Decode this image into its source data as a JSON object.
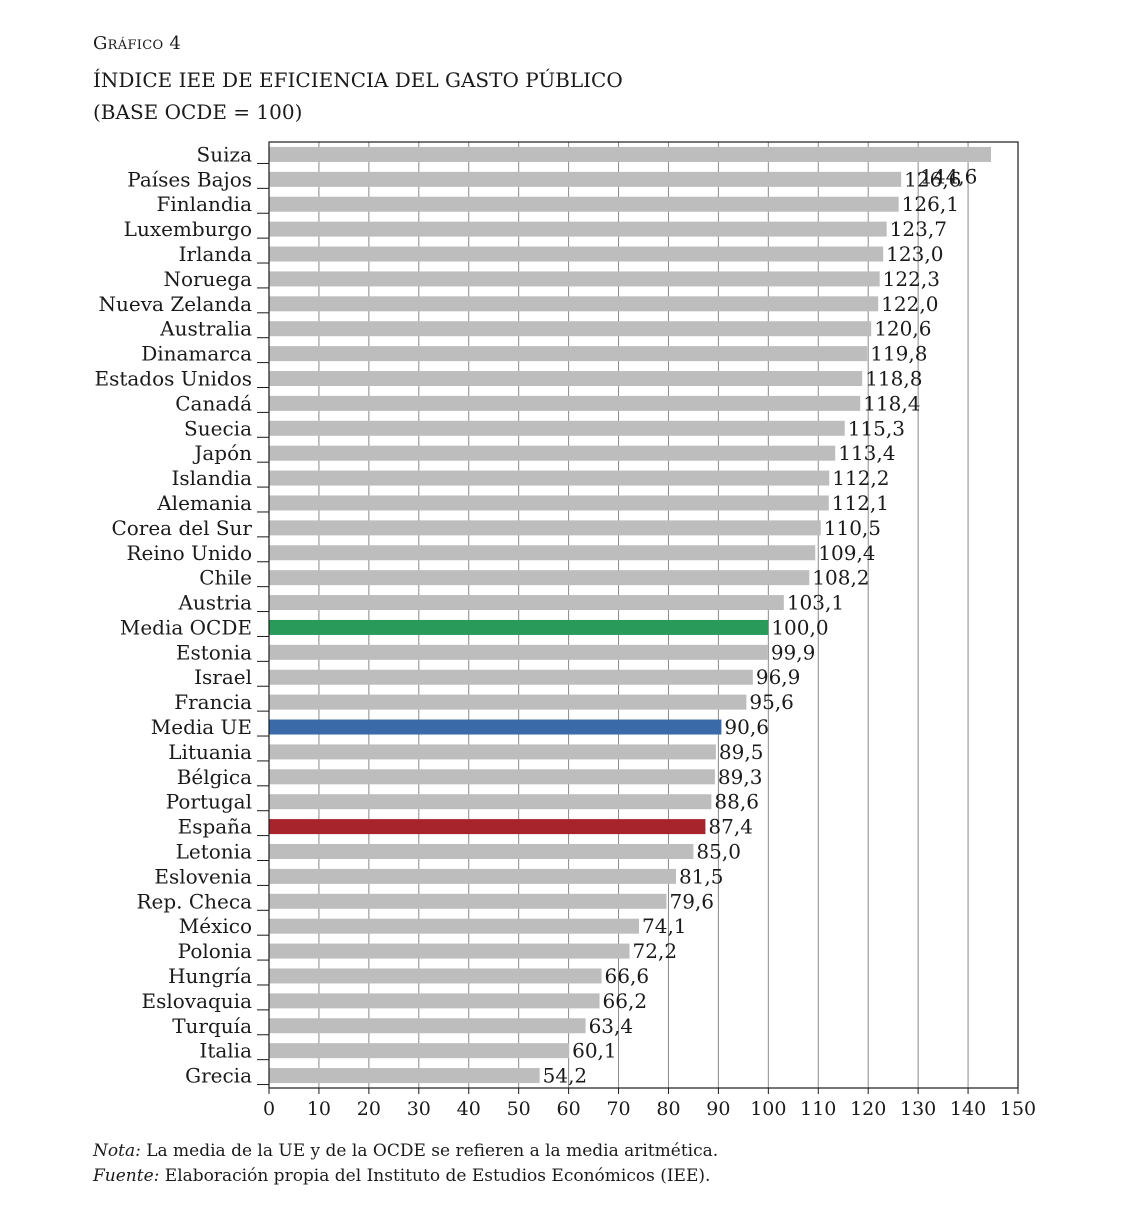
{
  "header": {
    "kicker": "Gráfico 4",
    "title": "ÍNDICE IEE DE EFICIENCIA DEL GASTO PÚBLICO",
    "subtitle": "(BASE OCDE = 100)"
  },
  "chart_data": {
    "type": "bar",
    "orientation": "horizontal",
    "title": "ÍNDICE IEE DE EFICIENCIA DEL GASTO PÚBLICO",
    "subtitle": "(BASE OCDE = 100)",
    "xlim": [
      0,
      150
    ],
    "xticks": [
      0,
      10,
      20,
      30,
      40,
      50,
      60,
      70,
      80,
      90,
      100,
      110,
      120,
      130,
      140,
      150
    ],
    "grid": true,
    "categories": [
      "Suiza",
      "Países Bajos",
      "Finlandia",
      "Luxemburgo",
      "Irlanda",
      "Noruega",
      "Nueva Zelanda",
      "Australia",
      "Dinamarca",
      "Estados Unidos",
      "Canadá",
      "Suecia",
      "Japón",
      "Islandia",
      "Alemania",
      "Corea del Sur",
      "Reino Unido",
      "Chile",
      "Austria",
      "Media OCDE",
      "Estonia",
      "Israel",
      "Francia",
      "Media UE",
      "Lituania",
      "Bélgica",
      "Portugal",
      "España",
      "Letonia",
      "Eslovenia",
      "Rep. Checa",
      "México",
      "Polonia",
      "Hungría",
      "Eslovaquia",
      "Turquía",
      "Italia",
      "Grecia"
    ],
    "values": [
      144.6,
      126.6,
      126.1,
      123.7,
      123.0,
      122.3,
      122.0,
      120.6,
      119.8,
      118.8,
      118.4,
      115.3,
      113.4,
      112.2,
      112.1,
      110.5,
      109.4,
      108.2,
      103.1,
      100.0,
      99.9,
      96.9,
      95.6,
      90.6,
      89.5,
      89.3,
      88.6,
      87.4,
      85.0,
      81.5,
      79.6,
      74.1,
      72.2,
      66.6,
      66.2,
      63.4,
      60.1,
      54.2
    ],
    "labels": [
      "144,6",
      "126,6",
      "126,1",
      "123,7",
      "123,0",
      "122,3",
      "122,0",
      "120,6",
      "119,8",
      "118,8",
      "118,4",
      "115,3",
      "113,4",
      "112,2",
      "112,1",
      "110,5",
      "109,4",
      "108,2",
      "103,1",
      "100,0",
      "99,9",
      "96,9",
      "95,6",
      "90,6",
      "89,5",
      "89,3",
      "88,6",
      "87,4",
      "85,0",
      "81,5",
      "79,6",
      "74,1",
      "72,2",
      "66,6",
      "66,2",
      "63,4",
      "60,1",
      "54,2"
    ],
    "highlight": {
      "Media OCDE": "#2a9a5a",
      "Media UE": "#3a6aa8",
      "España": "#a8242c"
    },
    "default_color": "#bdbdbd"
  },
  "notes": {
    "note_label": "Nota:",
    "note_text": " La media de la UE y de la OCDE se refieren a la media aritmética.",
    "source_label": "Fuente:",
    "source_text": " Elaboración propia del Instituto de Estudios Económicos (IEE)."
  }
}
